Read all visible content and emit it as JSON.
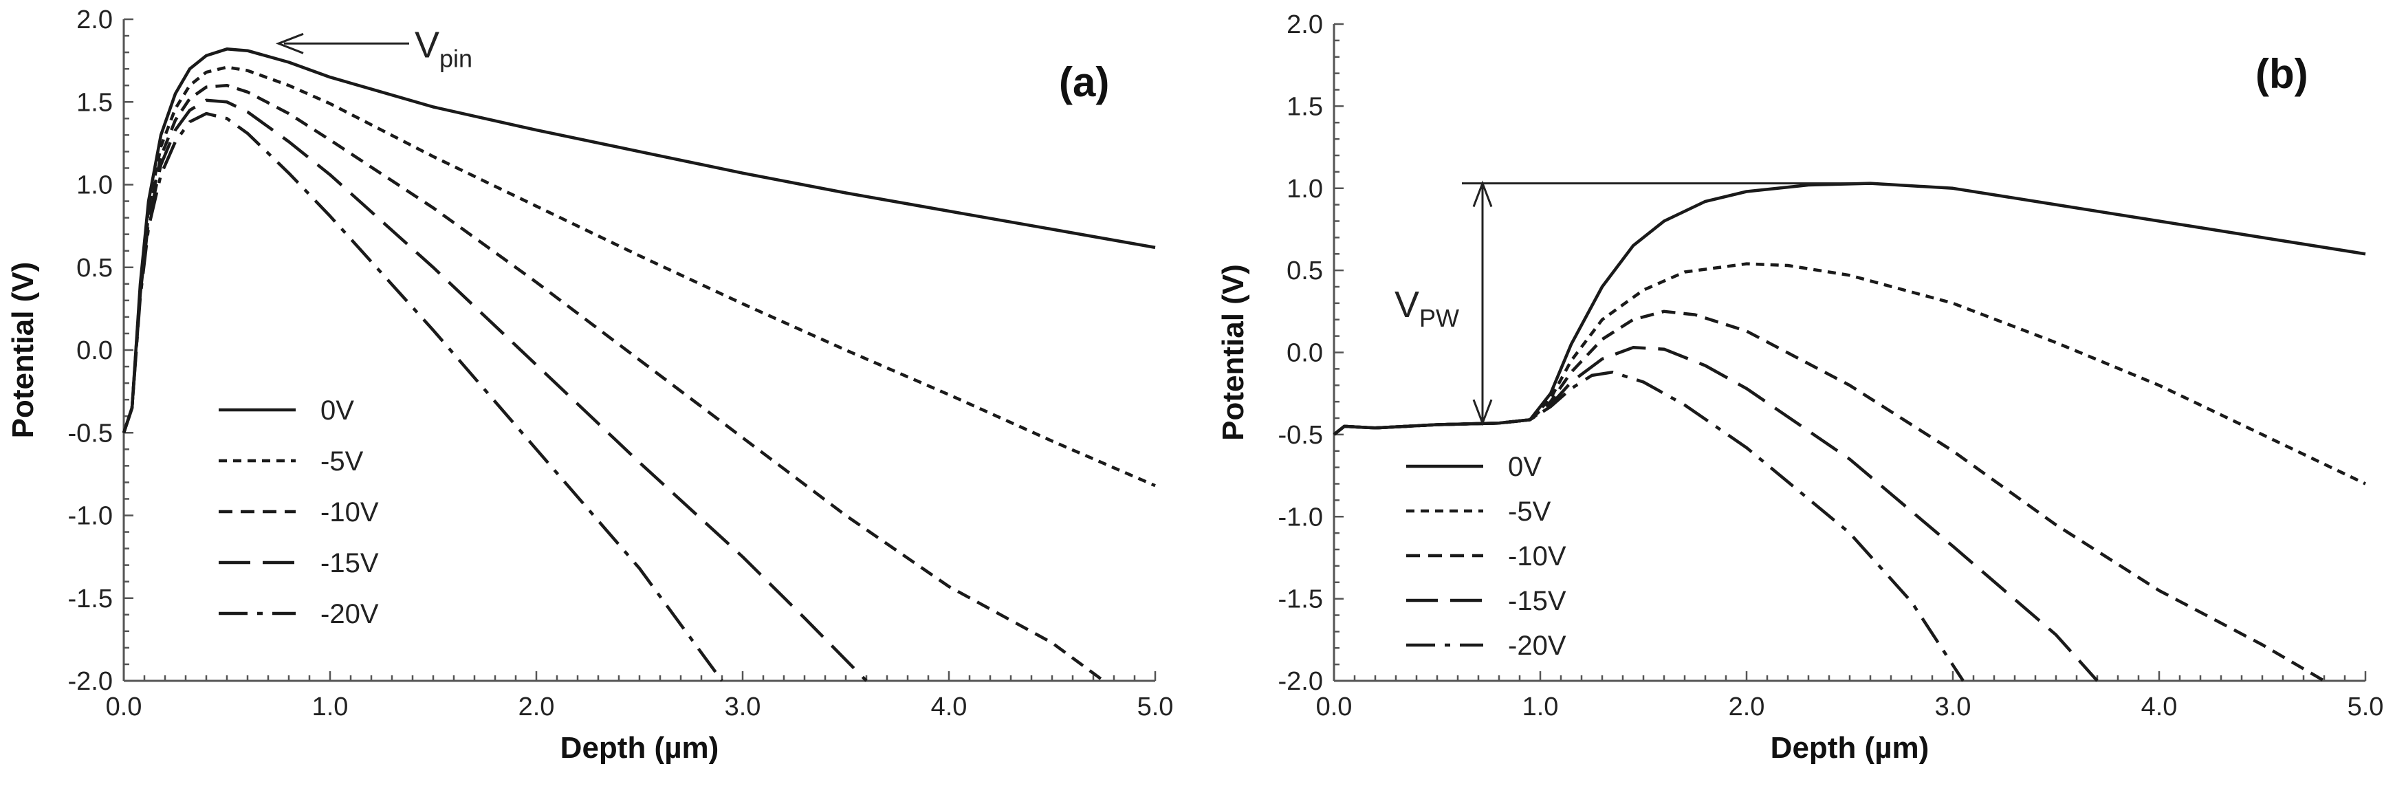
{
  "colors": {
    "line": "#1a1a1a",
    "axis": "#555555",
    "background": "#ffffff"
  },
  "legend_labels": [
    "0V",
    "-5V",
    "-10V",
    "-15V",
    "-20V"
  ],
  "chart_data": [
    {
      "type": "line",
      "panel_label": "(a)",
      "xlabel": "Depth (µm)",
      "ylabel": "Potential (V)",
      "xlim": [
        0,
        5
      ],
      "ylim": [
        -2,
        2
      ],
      "x_ticks": [
        "0.0",
        "1.0",
        "2.0",
        "3.0",
        "4.0",
        "5.0"
      ],
      "y_ticks": [
        "2.0",
        "1.5",
        "1.0",
        "0.5",
        "0.0",
        "-0.5",
        "-1.0",
        "-1.5",
        "-2.0"
      ],
      "grid": false,
      "legend_position": "lower-left",
      "annotation": {
        "text": "V",
        "subscript": "pin",
        "points_to": [
          0.75,
          1.82
        ]
      },
      "series": [
        {
          "name": "0V",
          "dash": "solid",
          "points": [
            [
              0.0,
              -0.5
            ],
            [
              0.04,
              -0.35
            ],
            [
              0.08,
              0.4
            ],
            [
              0.12,
              0.9
            ],
            [
              0.18,
              1.3
            ],
            [
              0.25,
              1.55
            ],
            [
              0.32,
              1.7
            ],
            [
              0.4,
              1.78
            ],
            [
              0.5,
              1.82
            ],
            [
              0.6,
              1.81
            ],
            [
              0.8,
              1.74
            ],
            [
              1.0,
              1.65
            ],
            [
              1.5,
              1.47
            ],
            [
              2.0,
              1.33
            ],
            [
              2.5,
              1.2
            ],
            [
              3.0,
              1.07
            ],
            [
              3.5,
              0.95
            ],
            [
              4.0,
              0.84
            ],
            [
              4.5,
              0.73
            ],
            [
              5.0,
              0.62
            ]
          ]
        },
        {
          "name": "-5V",
          "dash": "short",
          "points": [
            [
              0.0,
              -0.5
            ],
            [
              0.04,
              -0.35
            ],
            [
              0.08,
              0.38
            ],
            [
              0.12,
              0.86
            ],
            [
              0.18,
              1.23
            ],
            [
              0.25,
              1.46
            ],
            [
              0.32,
              1.6
            ],
            [
              0.4,
              1.68
            ],
            [
              0.5,
              1.71
            ],
            [
              0.6,
              1.69
            ],
            [
              0.8,
              1.6
            ],
            [
              1.0,
              1.49
            ],
            [
              1.5,
              1.17
            ],
            [
              2.0,
              0.87
            ],
            [
              2.5,
              0.57
            ],
            [
              3.0,
              0.28
            ],
            [
              3.5,
              0.0
            ],
            [
              4.0,
              -0.27
            ],
            [
              4.5,
              -0.55
            ],
            [
              5.0,
              -0.82
            ]
          ]
        },
        {
          "name": "-10V",
          "dash": "medium",
          "points": [
            [
              0.0,
              -0.5
            ],
            [
              0.04,
              -0.35
            ],
            [
              0.08,
              0.36
            ],
            [
              0.12,
              0.82
            ],
            [
              0.18,
              1.17
            ],
            [
              0.25,
              1.39
            ],
            [
              0.32,
              1.52
            ],
            [
              0.4,
              1.59
            ],
            [
              0.5,
              1.6
            ],
            [
              0.6,
              1.56
            ],
            [
              0.8,
              1.43
            ],
            [
              1.0,
              1.27
            ],
            [
              1.5,
              0.86
            ],
            [
              2.0,
              0.41
            ],
            [
              2.5,
              -0.06
            ],
            [
              3.0,
              -0.53
            ],
            [
              3.5,
              -1.0
            ],
            [
              4.0,
              -1.43
            ],
            [
              4.5,
              -1.77
            ],
            [
              4.75,
              -2.0
            ]
          ]
        },
        {
          "name": "-15V",
          "dash": "long",
          "points": [
            [
              0.0,
              -0.5
            ],
            [
              0.04,
              -0.35
            ],
            [
              0.08,
              0.34
            ],
            [
              0.12,
              0.78
            ],
            [
              0.18,
              1.12
            ],
            [
              0.25,
              1.33
            ],
            [
              0.32,
              1.45
            ],
            [
              0.4,
              1.51
            ],
            [
              0.5,
              1.5
            ],
            [
              0.6,
              1.44
            ],
            [
              0.8,
              1.26
            ],
            [
              1.0,
              1.06
            ],
            [
              1.5,
              0.5
            ],
            [
              2.0,
              -0.09
            ],
            [
              2.5,
              -0.68
            ],
            [
              3.0,
              -1.25
            ],
            [
              3.3,
              -1.62
            ],
            [
              3.6,
              -2.0
            ]
          ]
        },
        {
          "name": "-20V",
          "dash": "dashdot",
          "points": [
            [
              0.0,
              -0.5
            ],
            [
              0.04,
              -0.35
            ],
            [
              0.08,
              0.32
            ],
            [
              0.12,
              0.74
            ],
            [
              0.18,
              1.06
            ],
            [
              0.25,
              1.26
            ],
            [
              0.32,
              1.38
            ],
            [
              0.4,
              1.43
            ],
            [
              0.5,
              1.4
            ],
            [
              0.6,
              1.31
            ],
            [
              0.8,
              1.07
            ],
            [
              1.0,
              0.81
            ],
            [
              1.5,
              0.12
            ],
            [
              2.0,
              -0.6
            ],
            [
              2.5,
              -1.32
            ],
            [
              2.9,
              -2.0
            ]
          ]
        }
      ]
    },
    {
      "type": "line",
      "panel_label": "(b)",
      "xlabel": "Depth (µm)",
      "ylabel": "Potential (V)",
      "xlim": [
        0,
        5
      ],
      "ylim": [
        -2,
        2
      ],
      "x_ticks": [
        "0.0",
        "1.0",
        "2.0",
        "3.0",
        "4.0",
        "5.0"
      ],
      "y_ticks": [
        "2.0",
        "1.5",
        "1.0",
        "0.5",
        "0.0",
        "-0.5",
        "-1.0",
        "-1.5",
        "-2.0"
      ],
      "grid": false,
      "legend_position": "lower-left",
      "annotation": {
        "text": "V",
        "subscript": "PW",
        "from": [
          0.72,
          -0.43
        ],
        "to": [
          0.72,
          1.03
        ]
      },
      "series": [
        {
          "name": "0V",
          "dash": "solid",
          "points": [
            [
              0.0,
              -0.5
            ],
            [
              0.05,
              -0.45
            ],
            [
              0.2,
              -0.46
            ],
            [
              0.5,
              -0.44
            ],
            [
              0.8,
              -0.43
            ],
            [
              0.95,
              -0.41
            ],
            [
              1.05,
              -0.25
            ],
            [
              1.15,
              0.05
            ],
            [
              1.3,
              0.4
            ],
            [
              1.45,
              0.65
            ],
            [
              1.6,
              0.8
            ],
            [
              1.8,
              0.92
            ],
            [
              2.0,
              0.98
            ],
            [
              2.3,
              1.02
            ],
            [
              2.6,
              1.03
            ],
            [
              3.0,
              1.0
            ],
            [
              3.5,
              0.9
            ],
            [
              4.0,
              0.8
            ],
            [
              4.5,
              0.7
            ],
            [
              5.0,
              0.6
            ]
          ]
        },
        {
          "name": "-5V",
          "dash": "short",
          "points": [
            [
              0.0,
              -0.5
            ],
            [
              0.05,
              -0.45
            ],
            [
              0.2,
              -0.46
            ],
            [
              0.5,
              -0.44
            ],
            [
              0.8,
              -0.43
            ],
            [
              0.95,
              -0.41
            ],
            [
              1.05,
              -0.28
            ],
            [
              1.15,
              -0.05
            ],
            [
              1.3,
              0.2
            ],
            [
              1.5,
              0.38
            ],
            [
              1.7,
              0.49
            ],
            [
              2.0,
              0.54
            ],
            [
              2.2,
              0.53
            ],
            [
              2.5,
              0.47
            ],
            [
              3.0,
              0.3
            ],
            [
              3.5,
              0.06
            ],
            [
              4.0,
              -0.2
            ],
            [
              4.5,
              -0.5
            ],
            [
              5.0,
              -0.8
            ]
          ]
        },
        {
          "name": "-10V",
          "dash": "medium",
          "points": [
            [
              0.0,
              -0.5
            ],
            [
              0.05,
              -0.45
            ],
            [
              0.2,
              -0.46
            ],
            [
              0.5,
              -0.44
            ],
            [
              0.8,
              -0.43
            ],
            [
              0.95,
              -0.41
            ],
            [
              1.05,
              -0.3
            ],
            [
              1.15,
              -0.12
            ],
            [
              1.3,
              0.08
            ],
            [
              1.45,
              0.2
            ],
            [
              1.6,
              0.25
            ],
            [
              1.75,
              0.23
            ],
            [
              2.0,
              0.13
            ],
            [
              2.5,
              -0.2
            ],
            [
              3.0,
              -0.6
            ],
            [
              3.5,
              -1.05
            ],
            [
              4.0,
              -1.45
            ],
            [
              4.5,
              -1.78
            ],
            [
              4.8,
              -2.0
            ]
          ]
        },
        {
          "name": "-15V",
          "dash": "long",
          "points": [
            [
              0.0,
              -0.5
            ],
            [
              0.05,
              -0.45
            ],
            [
              0.2,
              -0.46
            ],
            [
              0.5,
              -0.44
            ],
            [
              0.8,
              -0.43
            ],
            [
              0.95,
              -0.41
            ],
            [
              1.05,
              -0.32
            ],
            [
              1.15,
              -0.18
            ],
            [
              1.3,
              -0.04
            ],
            [
              1.45,
              0.03
            ],
            [
              1.6,
              0.02
            ],
            [
              1.8,
              -0.08
            ],
            [
              2.0,
              -0.22
            ],
            [
              2.5,
              -0.65
            ],
            [
              3.0,
              -1.18
            ],
            [
              3.5,
              -1.72
            ],
            [
              3.7,
              -2.0
            ]
          ]
        },
        {
          "name": "-20V",
          "dash": "dashdot",
          "points": [
            [
              0.0,
              -0.5
            ],
            [
              0.05,
              -0.45
            ],
            [
              0.2,
              -0.46
            ],
            [
              0.5,
              -0.44
            ],
            [
              0.8,
              -0.43
            ],
            [
              0.95,
              -0.41
            ],
            [
              1.05,
              -0.33
            ],
            [
              1.15,
              -0.22
            ],
            [
              1.25,
              -0.14
            ],
            [
              1.35,
              -0.12
            ],
            [
              1.5,
              -0.18
            ],
            [
              1.7,
              -0.32
            ],
            [
              2.0,
              -0.58
            ],
            [
              2.5,
              -1.1
            ],
            [
              2.8,
              -1.52
            ],
            [
              3.05,
              -2.0
            ]
          ]
        }
      ]
    }
  ]
}
